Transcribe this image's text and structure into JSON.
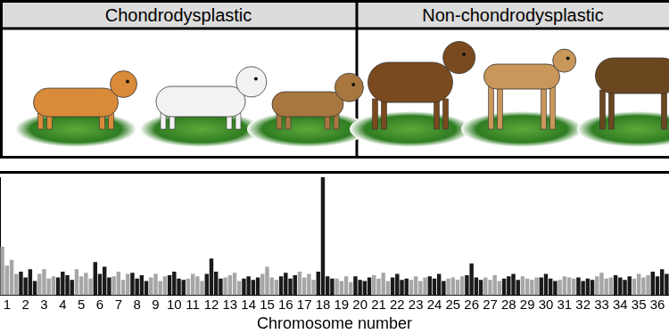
{
  "panels": [
    {
      "label": "Chondrodysplastic"
    },
    {
      "label": "Non-chondrodysplastic"
    }
  ],
  "chart_data": {
    "type": "bar",
    "x_label": "Chromosome number",
    "tick_labels": "x",
    "grid": false,
    "ylim": [
      0,
      100
    ],
    "categories": [
      null,
      "1",
      null,
      null,
      null,
      "2",
      null,
      null,
      null,
      "3",
      null,
      null,
      null,
      "4",
      null,
      null,
      null,
      "5",
      null,
      null,
      null,
      "6",
      null,
      null,
      null,
      "7",
      null,
      null,
      null,
      "8",
      null,
      null,
      null,
      "9",
      null,
      null,
      null,
      "10",
      null,
      null,
      null,
      "11",
      null,
      null,
      null,
      "12",
      null,
      null,
      null,
      "13",
      null,
      null,
      null,
      "14",
      null,
      null,
      null,
      "15",
      null,
      null,
      null,
      "16",
      null,
      null,
      null,
      "17",
      null,
      null,
      null,
      "18",
      null,
      null,
      null,
      "19",
      null,
      null,
      null,
      "20",
      null,
      null,
      null,
      "21",
      null,
      null,
      null,
      "22",
      null,
      null,
      null,
      "23",
      null,
      null,
      null,
      "24",
      null,
      null,
      null,
      "25",
      null,
      null,
      null,
      "26",
      null,
      null,
      null,
      "27",
      null,
      null,
      null,
      "28",
      null,
      null,
      null,
      "29",
      null,
      null,
      null,
      "30",
      null,
      null,
      null,
      "31",
      null,
      null,
      null,
      "32",
      null,
      null,
      null,
      "33",
      null,
      null,
      null,
      "34",
      null,
      null,
      null,
      "35",
      null,
      null,
      null,
      "36",
      null,
      null
    ],
    "values": [
      41,
      25,
      30,
      18,
      20,
      15,
      22,
      12,
      18,
      22,
      14,
      16,
      15,
      20,
      17,
      13,
      22,
      16,
      19,
      14,
      28,
      18,
      24,
      15,
      16,
      20,
      13,
      18,
      19,
      14,
      17,
      12,
      15,
      18,
      12,
      16,
      17,
      20,
      14,
      13,
      14,
      18,
      16,
      12,
      18,
      31,
      20,
      14,
      15,
      17,
      19,
      12,
      14,
      16,
      13,
      15,
      18,
      24,
      15,
      13,
      16,
      19,
      14,
      17,
      20,
      15,
      18,
      13,
      20,
      100,
      16,
      14,
      14,
      12,
      16,
      11,
      16,
      13,
      12,
      15,
      17,
      14,
      19,
      12,
      15,
      18,
      13,
      14,
      13,
      16,
      12,
      15,
      16,
      14,
      18,
      12,
      14,
      15,
      13,
      16,
      17,
      27,
      15,
      13,
      15,
      13,
      17,
      12,
      14,
      16,
      18,
      13,
      16,
      14,
      13,
      15,
      15,
      18,
      14,
      12,
      13,
      16,
      15,
      14,
      15,
      12,
      14,
      13,
      16,
      19,
      14,
      15,
      17,
      15,
      13,
      16,
      14,
      18,
      15,
      17,
      20,
      16,
      22,
      18
    ],
    "colors": [
      "#a6a6a6",
      "#a6a6a6",
      "#a6a6a6",
      "#a6a6a6",
      "#1a1a1a",
      "#1a1a1a",
      "#1a1a1a",
      "#1a1a1a",
      "#a6a6a6",
      "#a6a6a6",
      "#a6a6a6",
      "#a6a6a6",
      "#1a1a1a",
      "#1a1a1a",
      "#1a1a1a",
      "#1a1a1a",
      "#a6a6a6",
      "#a6a6a6",
      "#a6a6a6",
      "#a6a6a6",
      "#1a1a1a",
      "#1a1a1a",
      "#1a1a1a",
      "#1a1a1a",
      "#a6a6a6",
      "#a6a6a6",
      "#a6a6a6",
      "#a6a6a6",
      "#1a1a1a",
      "#1a1a1a",
      "#1a1a1a",
      "#1a1a1a",
      "#a6a6a6",
      "#a6a6a6",
      "#a6a6a6",
      "#a6a6a6",
      "#1a1a1a",
      "#1a1a1a",
      "#1a1a1a",
      "#1a1a1a",
      "#a6a6a6",
      "#a6a6a6",
      "#a6a6a6",
      "#a6a6a6",
      "#1a1a1a",
      "#1a1a1a",
      "#1a1a1a",
      "#1a1a1a",
      "#a6a6a6",
      "#a6a6a6",
      "#a6a6a6",
      "#a6a6a6",
      "#1a1a1a",
      "#1a1a1a",
      "#1a1a1a",
      "#1a1a1a",
      "#a6a6a6",
      "#a6a6a6",
      "#a6a6a6",
      "#a6a6a6",
      "#1a1a1a",
      "#1a1a1a",
      "#1a1a1a",
      "#1a1a1a",
      "#a6a6a6",
      "#a6a6a6",
      "#a6a6a6",
      "#a6a6a6",
      "#1a1a1a",
      "#1a1a1a",
      "#1a1a1a",
      "#1a1a1a",
      "#a6a6a6",
      "#a6a6a6",
      "#a6a6a6",
      "#a6a6a6",
      "#1a1a1a",
      "#1a1a1a",
      "#1a1a1a",
      "#1a1a1a",
      "#a6a6a6",
      "#a6a6a6",
      "#a6a6a6",
      "#a6a6a6",
      "#1a1a1a",
      "#1a1a1a",
      "#1a1a1a",
      "#1a1a1a",
      "#a6a6a6",
      "#a6a6a6",
      "#a6a6a6",
      "#a6a6a6",
      "#1a1a1a",
      "#1a1a1a",
      "#1a1a1a",
      "#1a1a1a",
      "#a6a6a6",
      "#a6a6a6",
      "#a6a6a6",
      "#a6a6a6",
      "#1a1a1a",
      "#1a1a1a",
      "#1a1a1a",
      "#1a1a1a",
      "#a6a6a6",
      "#a6a6a6",
      "#a6a6a6",
      "#a6a6a6",
      "#1a1a1a",
      "#1a1a1a",
      "#1a1a1a",
      "#1a1a1a",
      "#a6a6a6",
      "#a6a6a6",
      "#a6a6a6",
      "#a6a6a6",
      "#1a1a1a",
      "#1a1a1a",
      "#1a1a1a",
      "#1a1a1a",
      "#a6a6a6",
      "#a6a6a6",
      "#a6a6a6",
      "#a6a6a6",
      "#1a1a1a",
      "#1a1a1a",
      "#1a1a1a",
      "#1a1a1a",
      "#a6a6a6",
      "#a6a6a6",
      "#a6a6a6",
      "#a6a6a6",
      "#1a1a1a",
      "#1a1a1a",
      "#1a1a1a",
      "#1a1a1a",
      "#a6a6a6",
      "#a6a6a6",
      "#a6a6a6",
      "#a6a6a6",
      "#1a1a1a",
      "#1a1a1a",
      "#1a1a1a",
      "#1a1a1a"
    ]
  }
}
